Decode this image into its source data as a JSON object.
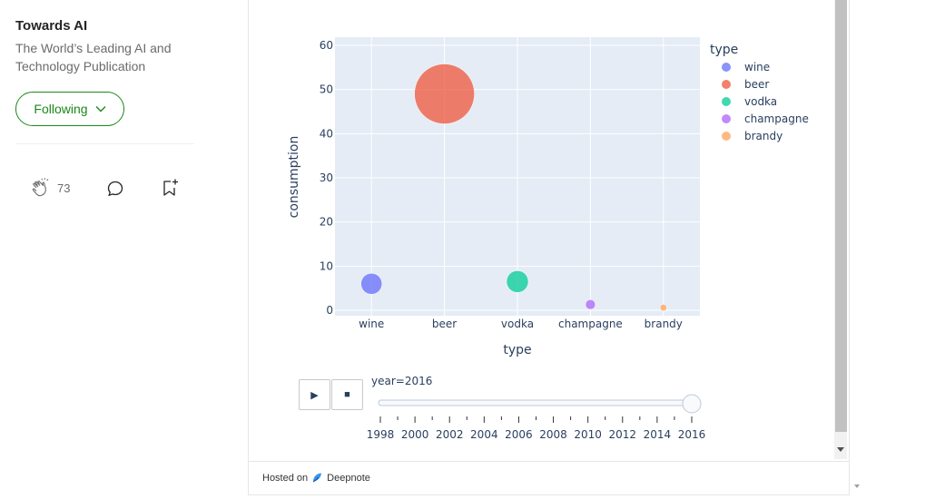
{
  "sidebar": {
    "publication_name": "Towards AI",
    "publication_description": "The World’s Leading AI and Technology Publication",
    "follow_label": "Following",
    "clap_count": "73"
  },
  "footer": {
    "hosted_prefix": "Hosted on",
    "hosted_brand": "Deepnote"
  },
  "chart_data": {
    "type": "scatter",
    "categories": [
      "wine",
      "beer",
      "vodka",
      "champagne",
      "brandy"
    ],
    "values": [
      6,
      49,
      6.5,
      1.3,
      0.6
    ],
    "colors": [
      "#636efa",
      "#ef553b",
      "#00cc96",
      "#ab63fa",
      "#ffa15a"
    ],
    "xlabel": "type",
    "ylabel": "consumption",
    "ylim": [
      0,
      60
    ],
    "yticks": [
      0,
      10,
      20,
      30,
      40,
      50,
      60
    ],
    "legend_title": "type",
    "legend_position": "right",
    "grid": true,
    "animation": {
      "label": "year=2016",
      "years": [
        "1998",
        "2000",
        "2002",
        "2004",
        "2006",
        "2008",
        "2010",
        "2012",
        "2014",
        "2016"
      ],
      "current": "2016"
    }
  }
}
